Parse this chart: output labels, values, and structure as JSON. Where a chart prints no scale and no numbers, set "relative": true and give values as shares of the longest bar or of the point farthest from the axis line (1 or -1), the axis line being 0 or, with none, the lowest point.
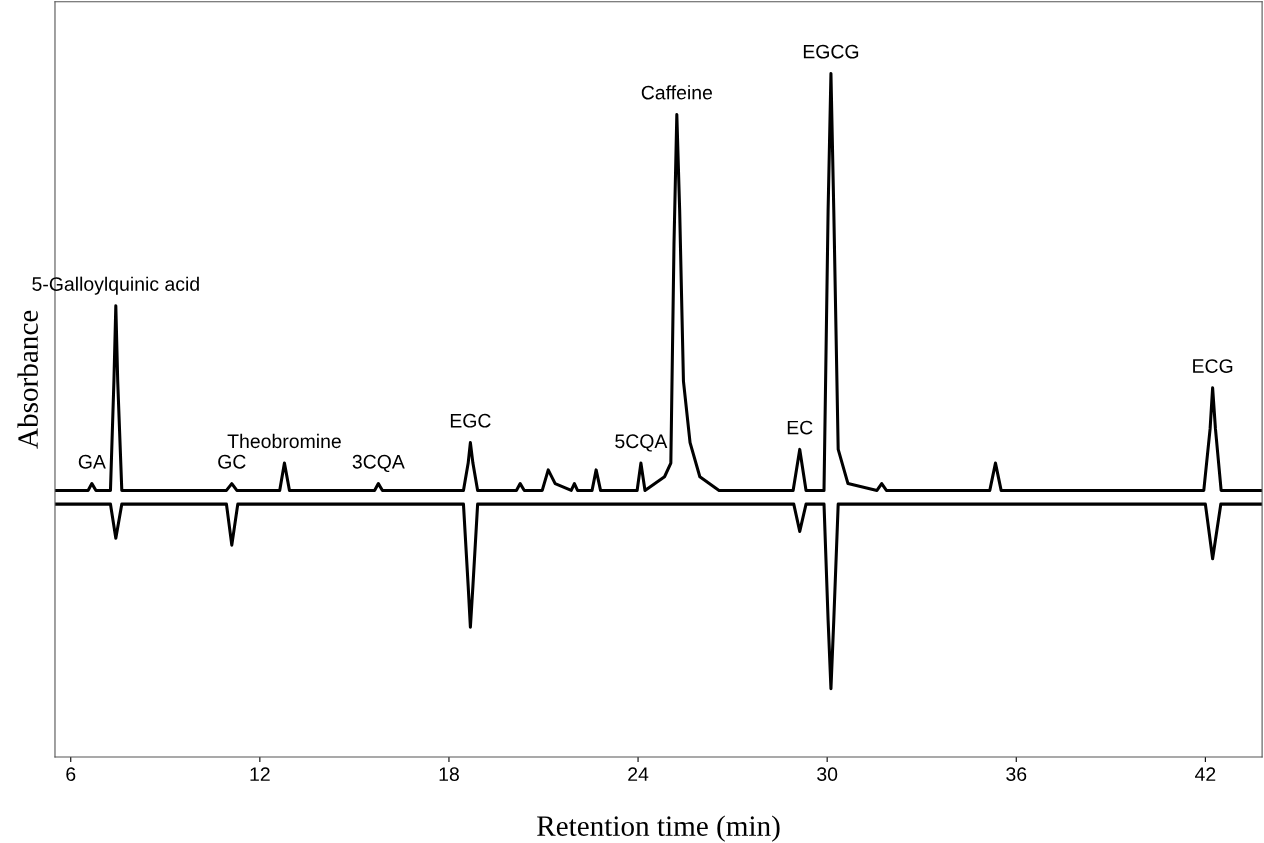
{
  "chart_data": {
    "type": "line",
    "relative": true,
    "xlabel": "Retention time (min)",
    "ylabel": "Absorbance",
    "xlim": [
      5.5,
      43.8
    ],
    "xticks": [
      6,
      12,
      18,
      24,
      30,
      36,
      42
    ],
    "grid": false,
    "marker": "none",
    "line_style": "solid",
    "tick_labels": "x",
    "series": [
      {
        "color": "#000000",
        "x": [
          5.53,
          6.55,
          6.67,
          6.8,
          7.26,
          7.37,
          7.43,
          7.49,
          7.62,
          8.49,
          8.6,
          8.71,
          10.94,
          11.11,
          11.27,
          12.63,
          12.78,
          12.94,
          15.64,
          15.76,
          15.89,
          18.46,
          18.61,
          18.68,
          18.76,
          18.91,
          20.14,
          20.26,
          20.39,
          20.96,
          21.15,
          21.37,
          21.88,
          21.98,
          22.08,
          22.54,
          22.67,
          22.81,
          23.97,
          24.09,
          24.22,
          24.84,
          25.04,
          25.14,
          25.23,
          25.32,
          25.44,
          25.65,
          25.96,
          26.57,
          28.92,
          29.13,
          29.33,
          29.9,
          30.03,
          30.12,
          30.21,
          30.35,
          30.66,
          31.58,
          31.73,
          31.88,
          32.2,
          33.47,
          35.16,
          35.34,
          35.52,
          38.0,
          41.95,
          42.15,
          42.23,
          42.32,
          42.5,
          43.78
        ],
        "values": [
          0.39,
          0.39,
          0.4,
          0.39,
          0.39,
          0.55,
          0.66,
          0.55,
          0.39,
          0.39,
          0.39,
          0.39,
          0.39,
          0.4,
          0.39,
          0.39,
          0.43,
          0.39,
          0.39,
          0.4,
          0.39,
          0.39,
          0.43,
          0.46,
          0.43,
          0.39,
          0.39,
          0.4,
          0.39,
          0.39,
          0.42,
          0.4,
          0.39,
          0.4,
          0.39,
          0.39,
          0.42,
          0.39,
          0.39,
          0.43,
          0.39,
          0.41,
          0.43,
          0.75,
          0.94,
          0.8,
          0.55,
          0.46,
          0.41,
          0.39,
          0.39,
          0.45,
          0.39,
          0.39,
          0.8,
          1.0,
          0.8,
          0.45,
          0.4,
          0.39,
          0.4,
          0.39,
          0.39,
          0.39,
          0.39,
          0.43,
          0.39,
          0.39,
          0.39,
          0.48,
          0.54,
          0.48,
          0.39,
          0.39
        ]
      },
      {
        "color": "#000000",
        "x": [
          5.53,
          7.26,
          7.43,
          7.62,
          10.94,
          11.11,
          11.3,
          18.46,
          18.61,
          18.68,
          18.76,
          18.91,
          21.15,
          22.67,
          28.94,
          29.13,
          29.33,
          29.9,
          30.03,
          30.12,
          30.21,
          30.35,
          42.0,
          42.23,
          42.49,
          43.78
        ],
        "values": [
          0.37,
          0.37,
          0.32,
          0.37,
          0.37,
          0.31,
          0.37,
          0.37,
          0.25,
          0.19,
          0.25,
          0.37,
          0.37,
          0.37,
          0.37,
          0.33,
          0.37,
          0.37,
          0.2,
          0.1,
          0.2,
          0.37,
          0.37,
          0.29,
          0.37,
          0.37
        ]
      }
    ],
    "annotations": [
      {
        "text": "GA",
        "x": 6.67,
        "y": 0.4
      },
      {
        "text": "5-Galloylquinic acid",
        "x": 7.43,
        "y": 0.66
      },
      {
        "text": "GC",
        "x": 11.11,
        "y": 0.4
      },
      {
        "text": "Theobromine",
        "x": 12.78,
        "y": 0.43
      },
      {
        "text": "3CQA",
        "x": 15.76,
        "y": 0.4
      },
      {
        "text": "EGC",
        "x": 18.68,
        "y": 0.46
      },
      {
        "text": "5CQA",
        "x": 24.09,
        "y": 0.43
      },
      {
        "text": "Caffeine",
        "x": 25.23,
        "y": 0.94
      },
      {
        "text": "EC",
        "x": 29.13,
        "y": 0.45
      },
      {
        "text": "EGCG",
        "x": 30.12,
        "y": 1.0
      },
      {
        "text": "ECG",
        "x": 42.23,
        "y": 0.54
      }
    ]
  }
}
